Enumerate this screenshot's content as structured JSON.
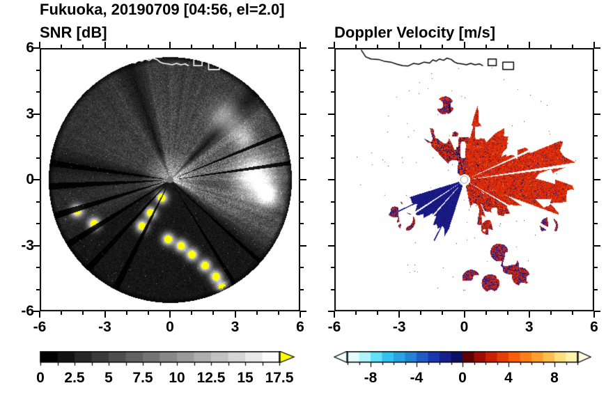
{
  "title": "Fukuoka, 20190709 [04:56, el=2.0]",
  "station": "Fukuoka",
  "date": "20190709",
  "time": "04:56",
  "elevation_deg": 2.0,
  "chart_data": [
    {
      "type": "heatmap",
      "id": "snr",
      "title": "SNR [dB]",
      "xlim": [
        -6,
        6
      ],
      "ylim": [
        -6,
        6
      ],
      "xtick_labels": [
        "-6",
        "-3",
        "0",
        "3",
        "6"
      ],
      "ytick_labels": [
        "6",
        "3",
        "0",
        "-3",
        "-6"
      ],
      "minor_tick_step": 1,
      "major_tick_step": 3,
      "background": "#ffffff",
      "disk": {
        "radius": 5.6,
        "color": "#000000"
      },
      "colorbar": {
        "min": 0,
        "max": 17.5,
        "tick_values": [
          0,
          2.5,
          5,
          7.5,
          10,
          12.5,
          15,
          17.5
        ],
        "tick_labels": [
          "0",
          "2.5",
          "5",
          "7.5",
          "10",
          "12.5",
          "15",
          "17.5"
        ],
        "segments": 14,
        "scheme": "grayscale",
        "over_arrow_color": "#ffff00"
      },
      "features": {
        "bright_fans": [
          {
            "az": [
              -40,
              45
            ],
            "amp": 95
          },
          {
            "az": [
              45,
              110
            ],
            "amp": 70
          },
          {
            "az": [
              110,
              170
            ],
            "amp": 48
          },
          {
            "az": [
              170,
              215
            ],
            "amp": 30
          }
        ],
        "blocked_beams_az": [
          8,
          22,
          172,
          183,
          197,
          212,
          227,
          243,
          302,
          318
        ],
        "clutter_blobs": [
          [
            3.9,
            0.1,
            0.9,
            215
          ],
          [
            4.5,
            -0.7,
            0.5,
            180
          ],
          [
            2.6,
            2.8,
            0.7,
            120
          ],
          [
            3.4,
            1.9,
            0.5,
            110
          ]
        ],
        "high_snr_arc": [
          [
            -0.4,
            -0.8
          ],
          [
            -0.9,
            -1.5
          ],
          [
            -1.3,
            -2.1
          ],
          [
            -3.5,
            -2.0
          ],
          [
            -4.3,
            -1.4
          ],
          [
            -0.1,
            -2.7
          ],
          [
            0.5,
            -3.0
          ],
          [
            1.0,
            -3.4
          ],
          [
            1.6,
            -3.9
          ],
          [
            2.1,
            -4.4
          ],
          [
            2.4,
            -4.9
          ]
        ],
        "center_dot_color": "#777777"
      }
    },
    {
      "type": "heatmap",
      "id": "doppler",
      "title": "Doppler Velocity [m/s]",
      "xlim": [
        -6,
        6
      ],
      "ylim": [
        -6,
        6
      ],
      "xtick_labels": [
        "-6",
        "-3",
        "0",
        "3",
        "6"
      ],
      "ytick_labels": [],
      "minor_tick_step": 1,
      "major_tick_step": 3,
      "background": "#ffffff",
      "colorbar": {
        "min": -10,
        "max": 10,
        "tick_values": [
          -8,
          -4,
          0,
          4,
          8
        ],
        "tick_labels": [
          "-8",
          "-4",
          "0",
          "4",
          "8"
        ],
        "segments": 20,
        "segment_colors": [
          "#e2fcfc",
          "#b0f4fa",
          "#62e1f6",
          "#34c3ee",
          "#2aa3e2",
          "#2582d4",
          "#215cc4",
          "#1c38ac",
          "#15208c",
          "#0c1060",
          "#5c0005",
          "#9c0d04",
          "#c92106",
          "#e63c08",
          "#f55f0c",
          "#fa7f16",
          "#fc9f2e",
          "#fdbd50",
          "#fede7e",
          "#fff3ae"
        ],
        "under_arrow_color": "#f0feff",
        "over_arrow_color": "#fffbe2"
      },
      "features": {
        "away_color": "#dd2b0b",
        "away_dark": "#a81c06",
        "away_orange": "#f25c10",
        "toward_color": "#1a1a86",
        "toward_dark": "#0d0d50",
        "speck_yellow": "#fabe3c",
        "red_fan": {
          "az": [
            -78,
            135
          ],
          "r_base": 2.6,
          "east_extension_az": [
            -20,
            22
          ],
          "east_extension_r": 4.8
        },
        "blue_wedge": {
          "az": [
            197,
            252
          ],
          "r": 2.55
        },
        "white_gap_beams_az": [
          8,
          24,
          213,
          228,
          330
        ],
        "toward_streak_az": 102,
        "blue_streaks": [
          [
            205,
            3.7
          ],
          [
            243,
            3.1
          ]
        ],
        "mixed_clusters": [
          [
            -3.2,
            -1.3
          ],
          [
            -2.7,
            -1.9
          ],
          [
            1.6,
            -3.3
          ],
          [
            2.1,
            -3.9
          ],
          [
            2.6,
            -4.4
          ],
          [
            1.2,
            -4.7
          ],
          [
            3.9,
            -2.1
          ],
          [
            -0.9,
            3.4
          ],
          [
            0.3,
            -4.5
          ]
        ]
      }
    }
  ],
  "coastline": {
    "points": [
      [
        -4.75,
        5.9
      ],
      [
        -4.55,
        5.6
      ],
      [
        -4.3,
        5.5
      ],
      [
        -3.95,
        5.48
      ],
      [
        -3.7,
        5.4
      ],
      [
        -3.4,
        5.36
      ],
      [
        -3.1,
        5.26
      ],
      [
        -2.85,
        5.2
      ],
      [
        -2.6,
        5.18
      ],
      [
        -2.35,
        5.3
      ],
      [
        -2.1,
        5.26
      ],
      [
        -1.85,
        5.36
      ],
      [
        -1.6,
        5.32
      ],
      [
        -1.45,
        5.46
      ],
      [
        -1.3,
        5.4
      ],
      [
        -1.15,
        5.5
      ],
      [
        -0.95,
        5.44
      ],
      [
        -0.8,
        5.54
      ],
      [
        -0.6,
        5.48
      ],
      [
        -0.45,
        5.36
      ],
      [
        -0.3,
        5.3
      ],
      [
        -0.1,
        5.28
      ],
      [
        0.1,
        5.24
      ],
      [
        0.3,
        5.3
      ],
      [
        0.5,
        5.24
      ],
      [
        0.7,
        5.28
      ],
      [
        0.85,
        5.2
      ]
    ],
    "structures": [
      [
        1.1,
        5.2,
        0.38,
        0.3
      ],
      [
        1.78,
        5.02,
        0.5,
        0.34
      ]
    ]
  }
}
